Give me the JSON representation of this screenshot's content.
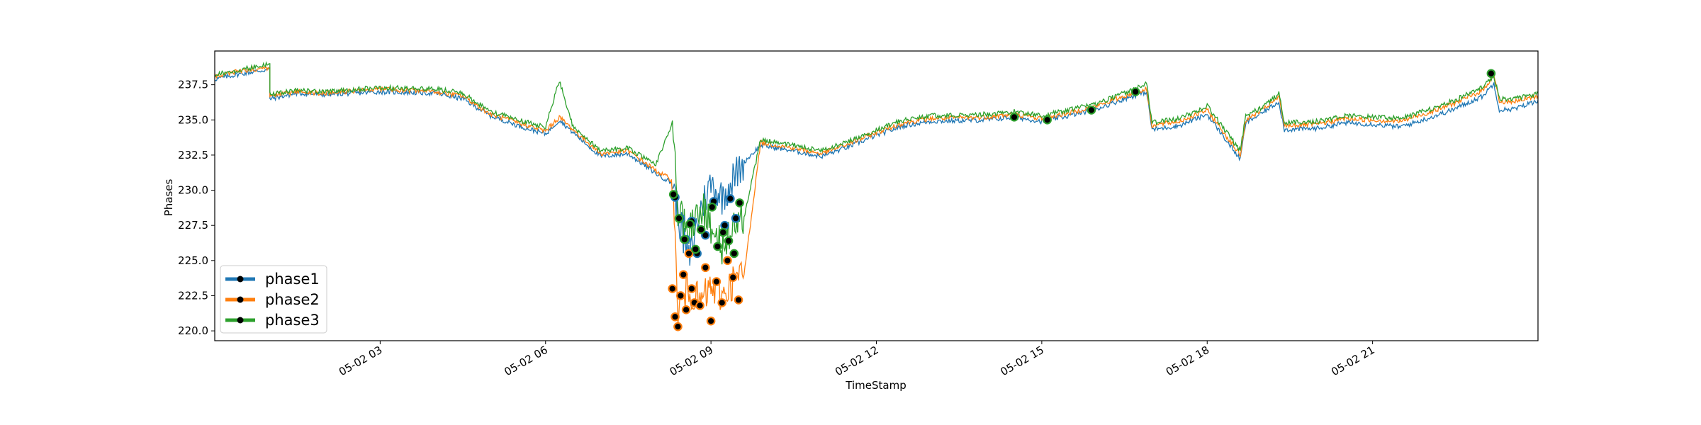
{
  "chart_data": {
    "type": "line",
    "title": "",
    "xlabel": "TimeStamp",
    "ylabel": "Phases",
    "x_range": [
      0.0,
      24.0
    ],
    "ylim": [
      219.3,
      239.9
    ],
    "x_ticks": [
      {
        "hour": 3,
        "label": "05-02 03"
      },
      {
        "hour": 6,
        "label": "05-02 06"
      },
      {
        "hour": 9,
        "label": "05-02 09"
      },
      {
        "hour": 12,
        "label": "05-02 12"
      },
      {
        "hour": 15,
        "label": "05-02 15"
      },
      {
        "hour": 18,
        "label": "05-02 18"
      },
      {
        "hour": 21,
        "label": "05-02 21"
      }
    ],
    "y_ticks": [
      220.0,
      222.5,
      225.0,
      227.5,
      230.0,
      232.5,
      235.0,
      237.5
    ],
    "legend_position": "lower-left",
    "grid": false,
    "marker_note": "black dots mark anomalous readings",
    "series": [
      {
        "name": "phase1",
        "color": "#1f77b4",
        "x": [
          0.0,
          0.5,
          1.0,
          1.0,
          1.5,
          2.0,
          3.0,
          4.0,
          4.5,
          5.0,
          5.5,
          6.0,
          6.25,
          6.5,
          7.0,
          7.5,
          8.0,
          8.3,
          8.5,
          8.6,
          8.8,
          9.0,
          9.2,
          9.4,
          9.6,
          9.9,
          10.5,
          11.0,
          11.5,
          12.0,
          12.5,
          13.0,
          14.0,
          14.5,
          15.0,
          15.5,
          16.0,
          16.5,
          16.9,
          17.0,
          17.5,
          18.0,
          18.6,
          18.7,
          19.0,
          19.3,
          19.4,
          20.0,
          20.5,
          21.0,
          21.5,
          22.0,
          22.5,
          23.0,
          23.2,
          23.3,
          23.6,
          24.0
        ],
        "y": [
          237.9,
          238.3,
          238.6,
          236.5,
          236.9,
          236.8,
          237.0,
          236.9,
          236.5,
          235.3,
          234.6,
          234.0,
          235.0,
          234.1,
          232.4,
          232.6,
          231.2,
          230.5,
          226.5,
          225.0,
          228.5,
          230.5,
          229.5,
          230.8,
          232.0,
          233.2,
          232.8,
          232.4,
          233.1,
          233.9,
          234.6,
          234.9,
          235.0,
          235.2,
          234.9,
          235.3,
          235.8,
          236.5,
          237.0,
          234.3,
          234.6,
          235.4,
          232.2,
          234.8,
          235.5,
          236.3,
          234.3,
          234.4,
          234.8,
          234.7,
          234.5,
          235.1,
          235.8,
          236.7,
          237.6,
          235.7,
          235.8,
          236.4
        ]
      },
      {
        "name": "phase2",
        "color": "#ff7f0e",
        "x": [
          0.0,
          0.5,
          1.0,
          1.0,
          1.5,
          2.0,
          3.0,
          4.0,
          4.5,
          5.0,
          5.5,
          6.0,
          6.25,
          6.5,
          7.0,
          7.5,
          8.0,
          8.3,
          8.4,
          8.6,
          8.8,
          9.0,
          9.2,
          9.4,
          9.6,
          9.9,
          10.5,
          11.0,
          11.5,
          12.0,
          12.5,
          13.0,
          14.0,
          14.5,
          15.0,
          15.5,
          16.0,
          16.5,
          16.9,
          17.0,
          17.5,
          18.0,
          18.6,
          18.7,
          19.0,
          19.3,
          19.4,
          20.0,
          20.5,
          21.0,
          21.5,
          22.0,
          22.5,
          23.0,
          23.2,
          23.3,
          23.6,
          24.0
        ],
        "y": [
          238.1,
          238.5,
          238.7,
          236.7,
          237.0,
          236.9,
          237.2,
          237.0,
          236.7,
          235.4,
          234.8,
          234.2,
          235.2,
          234.3,
          232.6,
          232.8,
          231.4,
          230.7,
          221.5,
          223.0,
          222.0,
          223.0,
          222.5,
          223.5,
          224.0,
          233.4,
          233.0,
          232.6,
          233.3,
          234.1,
          234.8,
          235.1,
          235.2,
          235.4,
          235.1,
          235.5,
          236.0,
          236.7,
          237.2,
          234.6,
          234.9,
          235.7,
          232.5,
          235.0,
          235.7,
          236.6,
          234.6,
          234.7,
          235.1,
          235.0,
          234.9,
          235.5,
          236.2,
          237.1,
          238.2,
          236.3,
          236.3,
          236.7
        ]
      },
      {
        "name": "phase3",
        "color": "#2ca02c",
        "x": [
          0.0,
          0.5,
          1.0,
          1.0,
          1.5,
          2.0,
          3.0,
          4.0,
          4.5,
          5.0,
          5.5,
          6.0,
          6.25,
          6.5,
          7.0,
          7.5,
          8.0,
          8.3,
          8.4,
          8.6,
          8.8,
          9.0,
          9.2,
          9.4,
          9.6,
          9.9,
          10.5,
          11.0,
          11.5,
          12.0,
          12.5,
          13.0,
          14.0,
          14.5,
          15.0,
          15.5,
          16.0,
          16.5,
          16.9,
          17.0,
          17.5,
          18.0,
          18.6,
          18.7,
          19.0,
          19.3,
          19.4,
          20.0,
          20.5,
          21.0,
          21.5,
          22.0,
          22.5,
          23.0,
          23.2,
          23.3,
          23.6,
          24.0
        ],
        "y": [
          238.2,
          238.6,
          239.0,
          236.8,
          237.1,
          237.0,
          237.3,
          237.2,
          236.9,
          235.6,
          235.0,
          234.5,
          237.8,
          234.5,
          232.8,
          233.0,
          231.8,
          234.8,
          228.5,
          227.0,
          229.0,
          227.5,
          226.0,
          227.5,
          228.0,
          233.6,
          233.2,
          232.8,
          233.5,
          234.3,
          235.0,
          235.3,
          235.4,
          235.6,
          235.3,
          235.7,
          236.2,
          236.9,
          237.6,
          234.8,
          235.1,
          236.0,
          232.8,
          235.3,
          235.9,
          236.9,
          234.8,
          234.9,
          235.3,
          235.2,
          235.1,
          235.7,
          236.4,
          237.4,
          238.1,
          236.5,
          236.5,
          236.9
        ]
      }
    ],
    "anomaly_points": {
      "phase1": {
        "x": [
          8.35,
          8.45,
          8.55,
          8.65,
          8.75,
          8.9,
          9.05,
          9.25,
          9.35,
          9.45
        ],
        "y": [
          229.5,
          228.0,
          226.5,
          227.8,
          225.5,
          226.8,
          229.2,
          227.5,
          229.4,
          228.0
        ]
      },
      "phase2": {
        "x": [
          8.3,
          8.35,
          8.4,
          8.45,
          8.5,
          8.55,
          8.6,
          8.65,
          8.7,
          8.8,
          8.9,
          9.0,
          9.1,
          9.2,
          9.3,
          9.4,
          9.5
        ],
        "y": [
          223.0,
          221.0,
          220.3,
          222.5,
          224.0,
          221.5,
          225.5,
          223.0,
          222.0,
          221.8,
          224.5,
          220.7,
          223.5,
          222.0,
          225.0,
          223.8,
          222.2
        ]
      },
      "phase3": {
        "x": [
          8.32,
          8.42,
          8.52,
          8.62,
          8.72,
          8.82,
          9.02,
          9.12,
          9.22,
          9.32,
          9.42,
          9.52,
          14.5,
          15.1,
          15.9,
          16.7,
          23.15
        ],
        "y": [
          229.7,
          228.0,
          226.5,
          227.6,
          225.8,
          227.2,
          228.8,
          226.0,
          227.0,
          226.4,
          225.5,
          229.1,
          235.2,
          235.0,
          235.7,
          237.0,
          238.3
        ]
      }
    }
  }
}
